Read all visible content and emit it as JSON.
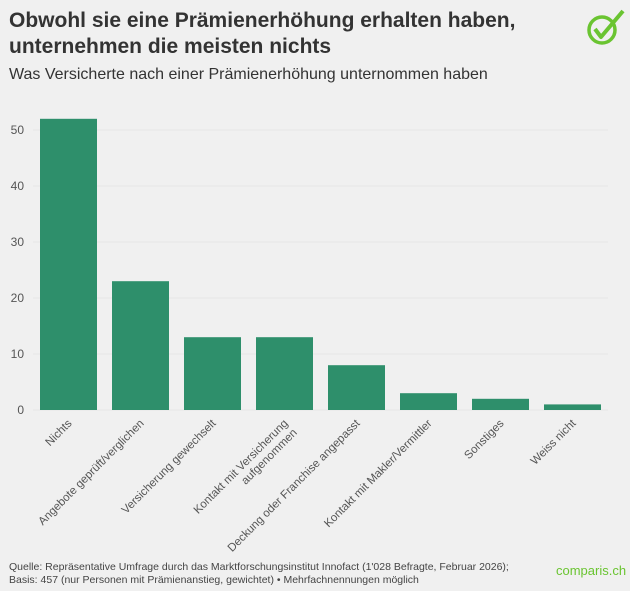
{
  "title": "Obwohl sie eine Prämienerhöhung erhalten haben, unternehmen die meisten nichts",
  "subtitle": "Was Versicherte nach einer Prämienerhöhung unternommen haben",
  "footer": "Quelle: Repräsentative Umfrage durch das Marktforschungsinstitut Innofact (1'028 Befragte, Februar 2026); Basis: 457 (nur Personen mit Prämienanstieg, gewichtet) • Mehrfachnennungen möglich",
  "brand": "comparis.ch",
  "colors": {
    "bar": "#2e8f6b",
    "brand": "#6ac431",
    "background": "#f0f0f0"
  },
  "chart_data": {
    "type": "bar",
    "categories": [
      "Nichts",
      "Angebote geprüft/verglichen",
      "Versicherung gewechselt",
      "Kontakt mit Versicherung aufgenommen",
      "Deckung oder Franchise angepasst",
      "Kontakt mit Makler/Vermittler",
      "Sonstiges",
      "Weiss nicht"
    ],
    "values": [
      52,
      23,
      13,
      13,
      8,
      3,
      2,
      1
    ],
    "yticks": [
      0,
      10,
      20,
      30,
      40,
      50
    ],
    "ylim": [
      0,
      55
    ],
    "grid": true,
    "xlabel": "",
    "ylabel": ""
  }
}
